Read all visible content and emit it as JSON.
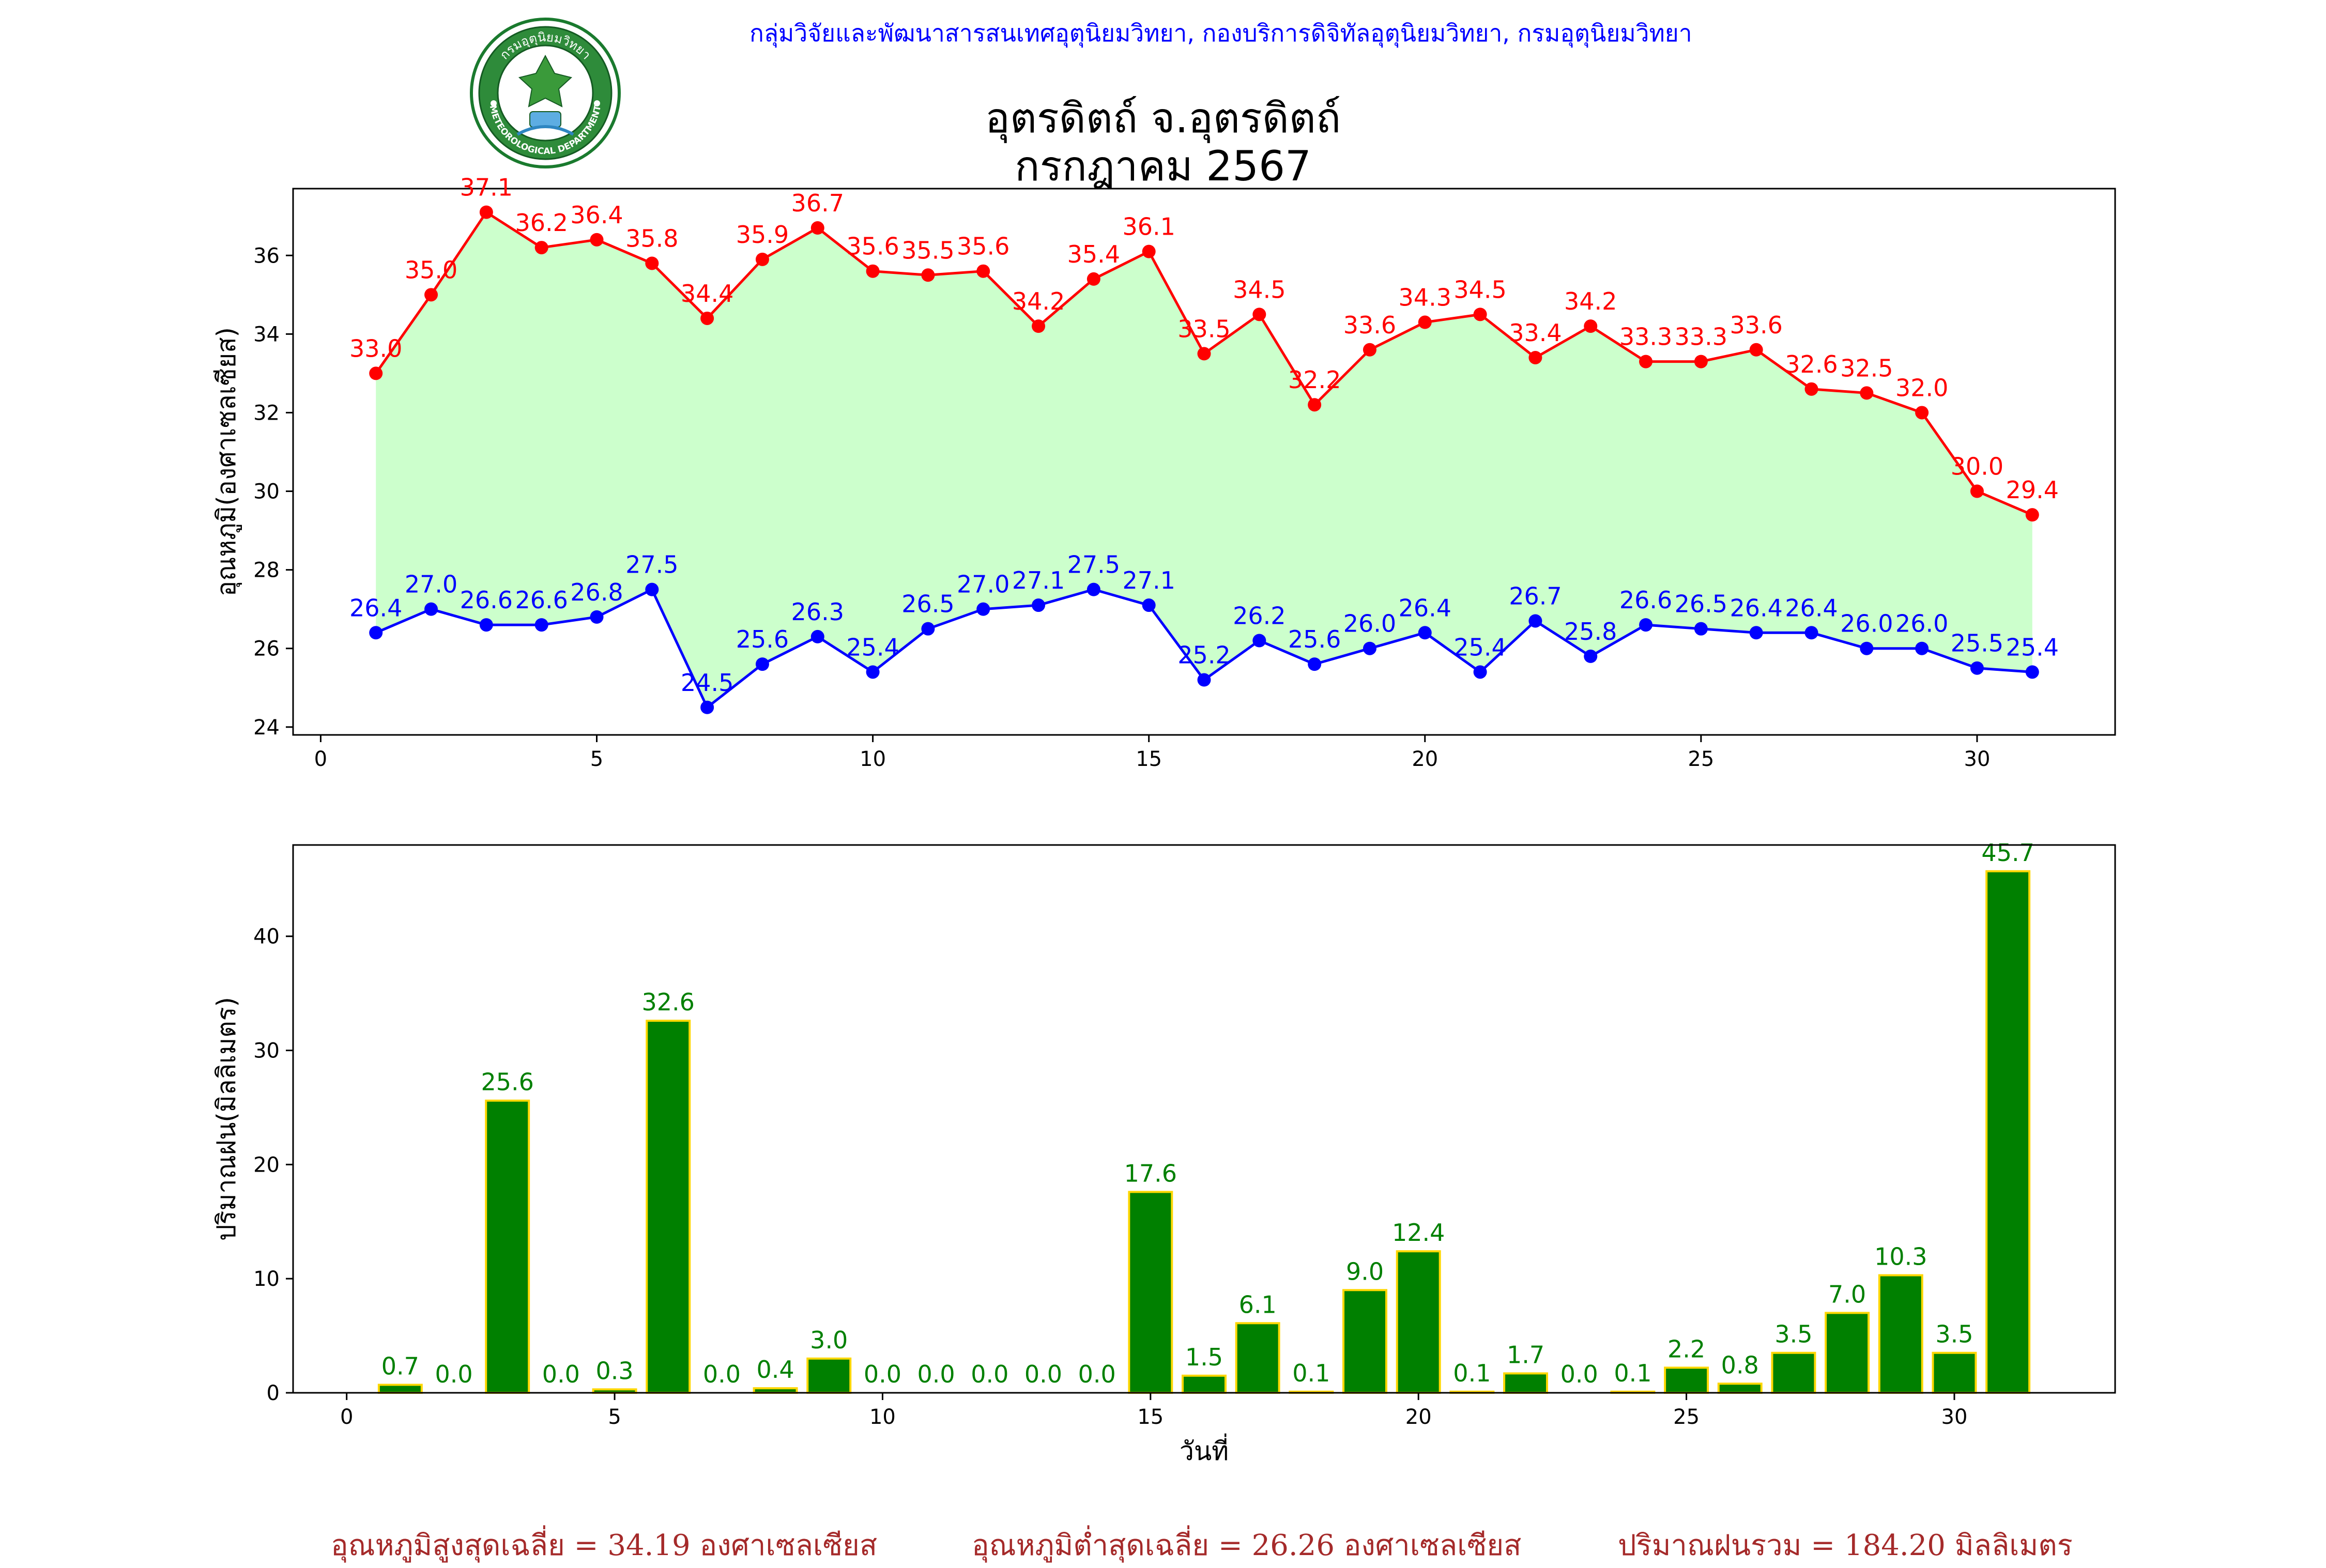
{
  "header": {
    "agency": "กลุ่มวิจัยและพัฒนาสารสนเทศอุตุนิยมวิทยา, กองบริการดิจิทัลอุตุนิยมวิทยา, กรมอุตุนิยมวิทยา",
    "station": "อุตรดิตถ์ จ.อุตรดิตถ์",
    "period": "กรกฎาคม 2567"
  },
  "logo": {
    "icon": "meteorological-department-seal-icon",
    "top_text": "กรมอุตุนิยมวิทยา",
    "bottom_text": "METEOROLOGICAL DEPARTMENT"
  },
  "footer": {
    "avg_max": "อุณหภูมิสูงสุดเฉลี่ย = 34.19 องศาเซลเซียส",
    "avg_min": "อุณหภูมิต่ำสุดเฉลี่ย = 26.26 องศาเซลเซียส",
    "total_rain": "ปริมาณฝนรวม = 184.20 มิลลิเมตร"
  },
  "colors": {
    "max_line": "#ff0000",
    "min_line": "#0000ff",
    "fill": "#ccffcc",
    "rain_bar": "#008000",
    "rain_edge": "#ffd700",
    "rain_label": "#008000",
    "footer": "#a52a2a"
  },
  "chart_data": [
    {
      "type": "line",
      "title": "",
      "xlabel": "",
      "ylabel": "อุณหภูมิ(องศาเซลเซียส)",
      "xlim": [
        -0.5,
        32.5
      ],
      "ylim": [
        23.8,
        37.7
      ],
      "xticks": [
        0,
        5,
        10,
        15,
        20,
        25,
        30
      ],
      "yticks": [
        24,
        26,
        28,
        30,
        32,
        34,
        36
      ],
      "grid": false,
      "x": [
        1,
        2,
        3,
        4,
        5,
        6,
        7,
        8,
        9,
        10,
        11,
        12,
        13,
        14,
        15,
        16,
        17,
        18,
        19,
        20,
        21,
        22,
        23,
        24,
        25,
        26,
        27,
        28,
        29,
        30,
        31
      ],
      "series": [
        {
          "name": "",
          "color": "#ff0000",
          "values": [
            33.0,
            35.0,
            37.1,
            36.2,
            36.4,
            35.8,
            34.4,
            35.9,
            36.7,
            35.6,
            35.5,
            35.6,
            34.2,
            35.4,
            36.1,
            33.5,
            34.5,
            32.2,
            33.6,
            34.3,
            34.5,
            33.4,
            34.2,
            33.3,
            33.3,
            33.6,
            32.6,
            32.5,
            32.0,
            30.0,
            29.4
          ]
        },
        {
          "name": "",
          "color": "#0000ff",
          "values": [
            26.4,
            27.0,
            26.6,
            26.6,
            26.8,
            27.5,
            24.5,
            25.6,
            26.3,
            25.4,
            26.5,
            27.0,
            27.1,
            27.5,
            27.1,
            25.2,
            26.2,
            25.6,
            26.0,
            26.4,
            25.4,
            26.7,
            25.8,
            26.6,
            26.5,
            26.4,
            26.4,
            26.0,
            26.0,
            25.5,
            25.4
          ]
        }
      ]
    },
    {
      "type": "bar",
      "title": "",
      "xlabel": "วันที่",
      "ylabel": "ปริมาณฝน(มิลลิเมตร)",
      "xlim": [
        -1,
        33
      ],
      "ylim": [
        0,
        48
      ],
      "xticks": [
        0,
        5,
        10,
        15,
        20,
        25,
        30
      ],
      "yticks": [
        0,
        10,
        20,
        30,
        40
      ],
      "grid": false,
      "x": [
        1,
        2,
        3,
        4,
        5,
        6,
        7,
        8,
        9,
        10,
        11,
        12,
        13,
        14,
        15,
        16,
        17,
        18,
        19,
        20,
        21,
        22,
        23,
        24,
        25,
        26,
        27,
        28,
        29,
        30,
        31
      ],
      "values": [
        0.7,
        0.0,
        25.6,
        0.0,
        0.3,
        32.6,
        0.0,
        0.4,
        3.0,
        0.0,
        0.0,
        0.0,
        0.0,
        0.0,
        17.6,
        1.5,
        6.1,
        0.1,
        9.0,
        12.4,
        0.1,
        1.7,
        0.0,
        0.1,
        2.2,
        0.8,
        3.5,
        7.0,
        10.3,
        3.5,
        45.7
      ]
    }
  ]
}
